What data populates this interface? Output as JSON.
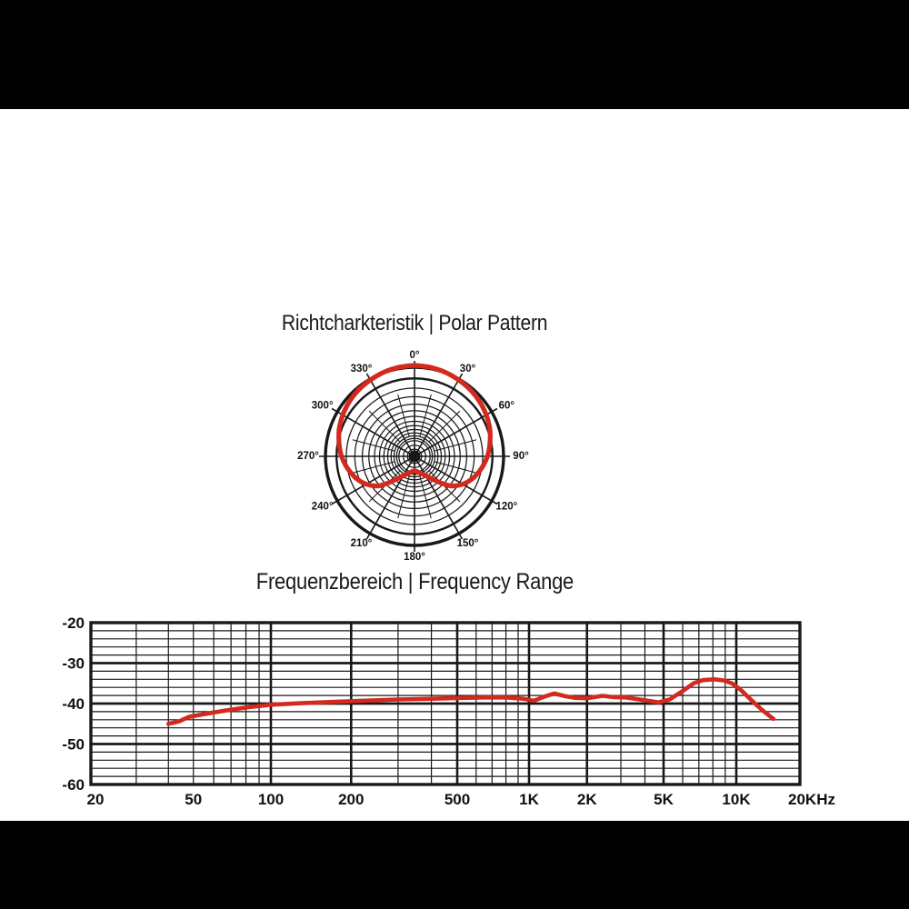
{
  "page": {
    "background_color": "#000000",
    "panel_color": "#ffffff",
    "grid_color": "#181818",
    "accent_color": "#d3291e"
  },
  "chart_data": [
    {
      "type": "polar",
      "title": "Richtcharkteristik | Polar Pattern",
      "pattern_name": "cardioid",
      "angle_ticks": [
        {
          "deg": 0,
          "label": "0°"
        },
        {
          "deg": 30,
          "label": "30°"
        },
        {
          "deg": 60,
          "label": "60°"
        },
        {
          "deg": 90,
          "label": "90°"
        },
        {
          "deg": 120,
          "label": "120°"
        },
        {
          "deg": 150,
          "label": "150°"
        },
        {
          "deg": 180,
          "label": "180°"
        },
        {
          "deg": 210,
          "label": "210°"
        },
        {
          "deg": 240,
          "label": "240°"
        },
        {
          "deg": 270,
          "label": "270°"
        },
        {
          "deg": 300,
          "label": "300°"
        },
        {
          "deg": 330,
          "label": "330°"
        }
      ],
      "grid": {
        "ring_radii_rel": [
          1.0,
          0.875,
          0.766,
          0.67,
          0.586,
          0.513,
          0.449,
          0.393,
          0.344,
          0.301,
          0.263,
          0.23,
          0.201,
          0.176,
          0.125,
          0.08
        ],
        "bold_ring_indices": [
          0,
          1
        ],
        "spoke_step_deg": 30,
        "minor_radial_step_deg": 15,
        "minor_radial_inner_rel": 0.23,
        "minor_radial_outer_rel": 0.72
      },
      "curve": {
        "name": "polar response",
        "color": "#d3291e",
        "symmetric": true,
        "theta_r": [
          [
            0,
            1.02
          ],
          [
            10,
            1.015
          ],
          [
            20,
            1.005
          ],
          [
            30,
            0.99
          ],
          [
            40,
            0.975
          ],
          [
            50,
            0.955
          ],
          [
            60,
            0.93
          ],
          [
            70,
            0.9
          ],
          [
            80,
            0.86
          ],
          [
            90,
            0.82
          ],
          [
            100,
            0.765
          ],
          [
            110,
            0.705
          ],
          [
            118,
            0.645
          ],
          [
            124,
            0.585
          ],
          [
            129,
            0.53
          ],
          [
            134,
            0.44
          ],
          [
            140,
            0.345
          ],
          [
            147,
            0.27
          ],
          [
            155,
            0.22
          ],
          [
            164,
            0.19
          ],
          [
            172,
            0.17
          ],
          [
            180,
            0.16
          ]
        ]
      }
    },
    {
      "type": "line",
      "title": "Frequenzbereich | Frequency Range",
      "xlabel": "",
      "ylabel": "",
      "x_scale": "log",
      "x_range_hz": [
        20,
        20000
      ],
      "y_range_db": [
        -60,
        -20
      ],
      "y_minor_step_db": 2,
      "x_ticks": [
        {
          "f": 20,
          "label": "20"
        },
        {
          "f": 50,
          "label": "50"
        },
        {
          "f": 100,
          "label": "100"
        },
        {
          "f": 200,
          "label": "200"
        },
        {
          "f": 500,
          "label": "500"
        },
        {
          "f": 1000,
          "label": "1K"
        },
        {
          "f": 2000,
          "label": "2K"
        },
        {
          "f": 5000,
          "label": "5K"
        },
        {
          "f": 10000,
          "label": "10K"
        },
        {
          "f": 20000,
          "label": "20KHz"
        }
      ],
      "y_ticks": [
        {
          "db": -20,
          "label": "-20"
        },
        {
          "db": -30,
          "label": "-30"
        },
        {
          "db": -40,
          "label": "-40"
        },
        {
          "db": -50,
          "label": "-50"
        },
        {
          "db": -60,
          "label": "-60"
        }
      ],
      "major_grid_freqs": [
        100,
        200,
        500,
        1000,
        2000,
        5000,
        10000
      ],
      "minor_grid_freqs": [
        30,
        40,
        50,
        60,
        70,
        80,
        90,
        300,
        400,
        600,
        700,
        800,
        900,
        3000,
        4000,
        6000,
        7000,
        8000,
        9000
      ],
      "series": [
        {
          "name": "frequency response",
          "color": "#d3291e",
          "points_hz_db": [
            [
              40,
              -45.0
            ],
            [
              44,
              -44.4
            ],
            [
              48,
              -43.3
            ],
            [
              52,
              -42.9
            ],
            [
              60,
              -42.2
            ],
            [
              70,
              -41.5
            ],
            [
              82,
              -40.9
            ],
            [
              100,
              -40.3
            ],
            [
              130,
              -39.9
            ],
            [
              170,
              -39.6
            ],
            [
              220,
              -39.3
            ],
            [
              300,
              -39.0
            ],
            [
              400,
              -38.8
            ],
            [
              520,
              -38.6
            ],
            [
              650,
              -38.5
            ],
            [
              800,
              -38.5
            ],
            [
              950,
              -38.8
            ],
            [
              1060,
              -39.3
            ],
            [
              1200,
              -38.3
            ],
            [
              1350,
              -37.5
            ],
            [
              1550,
              -38.2
            ],
            [
              1750,
              -38.6
            ],
            [
              2000,
              -38.7
            ],
            [
              2400,
              -38.1
            ],
            [
              2750,
              -38.4
            ],
            [
              3200,
              -38.5
            ],
            [
              4000,
              -39.2
            ],
            [
              4700,
              -39.7
            ],
            [
              5300,
              -39.0
            ],
            [
              6000,
              -36.9
            ],
            [
              6700,
              -34.9
            ],
            [
              7300,
              -34.2
            ],
            [
              8100,
              -34.0
            ],
            [
              8900,
              -34.3
            ],
            [
              9600,
              -35.0
            ],
            [
              10500,
              -36.6
            ],
            [
              11500,
              -38.6
            ],
            [
              12500,
              -40.4
            ],
            [
              13600,
              -42.1
            ],
            [
              15000,
              -43.8
            ]
          ]
        }
      ]
    }
  ]
}
